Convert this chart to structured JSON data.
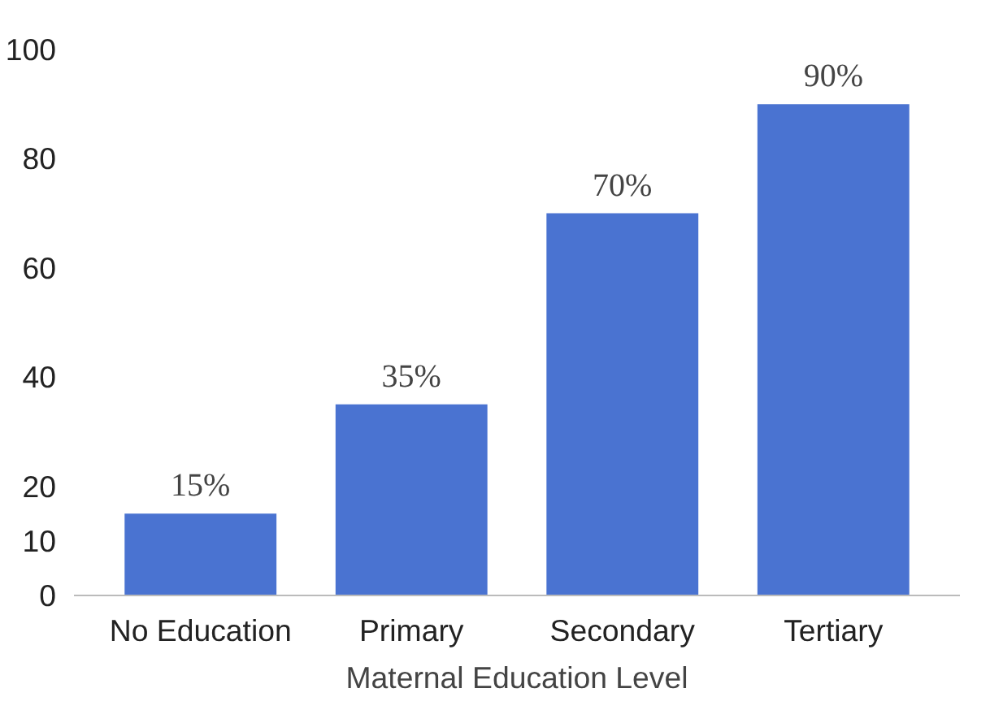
{
  "chart_data": {
    "type": "bar",
    "xlabel": "Maternal Education Level",
    "categories": [
      "No Education",
      "Primary",
      "Secondary",
      "Tertiary"
    ],
    "values": [
      15,
      35,
      70,
      90
    ],
    "value_labels": [
      "15%",
      "35%",
      "70%",
      "90%"
    ],
    "color": "#4a73d1",
    "ylim": [
      0,
      100
    ],
    "yticks": [
      0,
      10,
      20,
      40,
      60,
      80,
      100
    ],
    "grid": false
  }
}
